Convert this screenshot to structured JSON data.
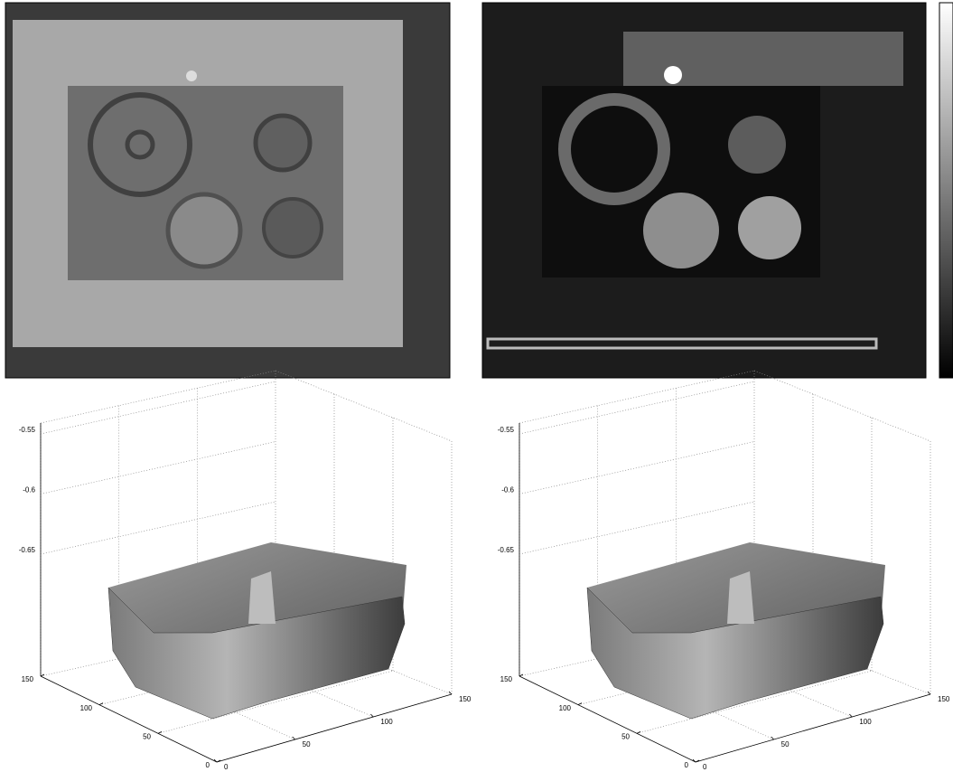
{
  "surface_plots": [
    {
      "z_ticks": [
        -0.55,
        -0.6,
        -0.65
      ],
      "y_ticks": [
        150,
        100,
        50,
        0
      ],
      "x_ticks": [
        0,
        50,
        100,
        150
      ]
    },
    {
      "z_ticks": [
        -0.55,
        -0.6,
        -0.65
      ],
      "y_ticks": [
        150,
        100,
        50,
        0
      ],
      "x_ticks": [
        0,
        50,
        100,
        150
      ]
    }
  ]
}
